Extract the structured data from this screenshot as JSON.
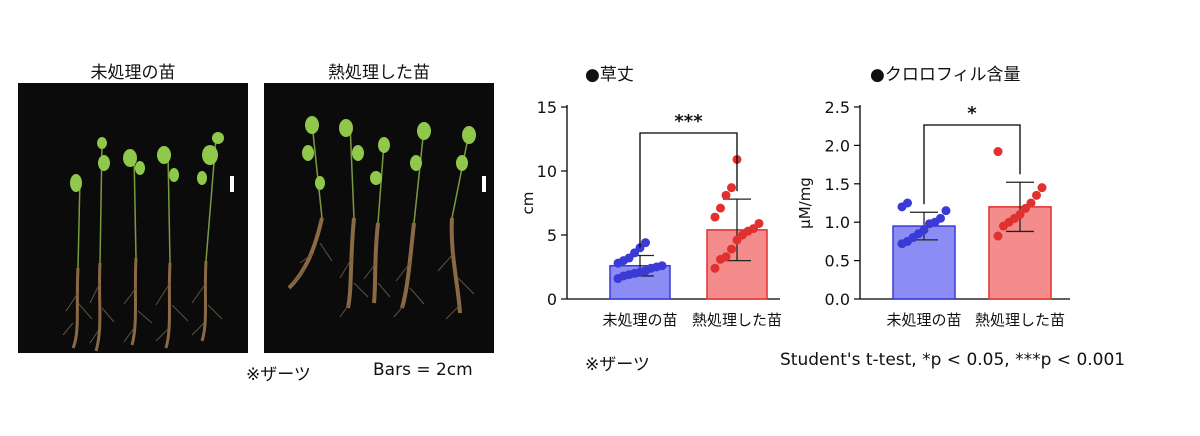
{
  "photos": {
    "left_title": "未処理の苗",
    "right_title": "熱処理した苗",
    "species_note": "※ザーツ",
    "scale_note": "Bars = 2cm"
  },
  "chart_data": [
    {
      "type": "bar",
      "title": "●草丈",
      "ylabel": "cm",
      "categories": [
        "未処理の苗",
        "熱処理した苗"
      ],
      "values": [
        2.6,
        5.4
      ],
      "errors": [
        0.8,
        2.4
      ],
      "points": [
        [
          1.6,
          1.8,
          1.9,
          2.0,
          2.1,
          2.2,
          2.4,
          2.5,
          2.6,
          2.8,
          3.0,
          3.2,
          3.6,
          4.0,
          4.4
        ],
        [
          2.4,
          3.1,
          3.3,
          3.9,
          4.6,
          5.0,
          5.3,
          5.5,
          5.9,
          6.4,
          7.1,
          8.1,
          8.7,
          10.9
        ]
      ],
      "ylim": [
        0,
        15
      ],
      "yticks": [
        0,
        5,
        10,
        15
      ],
      "significance": "***",
      "colors": [
        "#3a3ad6",
        "#e03030"
      ],
      "fill_colors": [
        "#8c8cf5",
        "#f58c8c"
      ],
      "footnote": "※ザーツ"
    },
    {
      "type": "bar",
      "title": "●クロロフィル含量",
      "ylabel": "μM/mg",
      "categories": [
        "未処理の苗",
        "熱処理した苗"
      ],
      "values": [
        0.95,
        1.2
      ],
      "errors": [
        0.18,
        0.32
      ],
      "points": [
        [
          0.72,
          0.75,
          0.8,
          0.85,
          0.9,
          0.98,
          1.0,
          1.05,
          1.15,
          1.2,
          1.25
        ],
        [
          0.82,
          0.95,
          1.0,
          1.05,
          1.1,
          1.18,
          1.25,
          1.35,
          1.45,
          1.92
        ]
      ],
      "ylim": [
        0,
        2.5
      ],
      "yticks": [
        0.0,
        0.5,
        1.0,
        1.5,
        2.0,
        2.5
      ],
      "ytick_labels": [
        "0.0",
        "0.5",
        "1.0",
        "1.5",
        "2.0",
        "2.5"
      ],
      "significance": "*",
      "colors": [
        "#3a3ad6",
        "#e03030"
      ],
      "fill_colors": [
        "#8c8cf5",
        "#f58c8c"
      ],
      "footnote": "Student's t-test, *p < 0.05, ***p < 0.001"
    }
  ]
}
